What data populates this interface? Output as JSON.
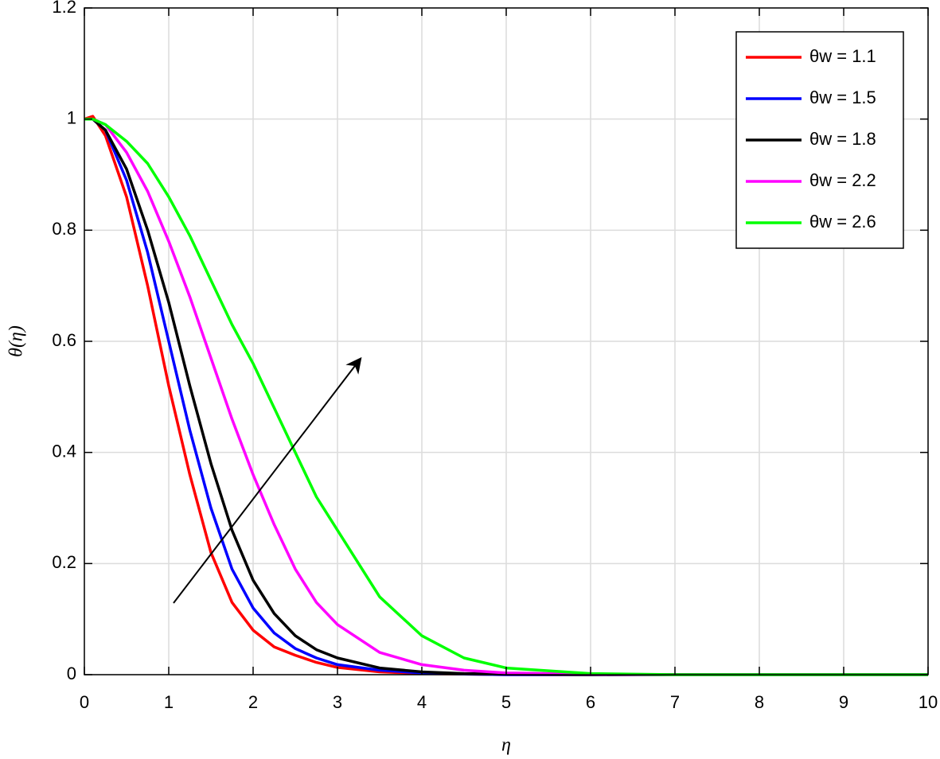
{
  "chart_data": {
    "type": "line",
    "xlabel": "η",
    "ylabel": "θ(η)",
    "x": [
      0,
      0.1,
      0.25,
      0.5,
      0.75,
      1,
      1.25,
      1.5,
      1.75,
      2,
      2.25,
      2.5,
      2.75,
      3,
      3.5,
      4,
      4.5,
      5,
      6,
      7,
      8,
      9,
      10
    ],
    "series": [
      {
        "name": "θw = 1.1",
        "color": "#ff0000",
        "values": [
          1,
          1.005,
          0.97,
          0.86,
          0.7,
          0.52,
          0.36,
          0.22,
          0.13,
          0.08,
          0.05,
          0.035,
          0.022,
          0.013,
          0.005,
          0.002,
          0.001,
          0,
          0,
          0,
          0,
          0,
          0
        ]
      },
      {
        "name": "θw = 1.5",
        "color": "#0000ff",
        "values": [
          1,
          1,
          0.98,
          0.89,
          0.76,
          0.6,
          0.44,
          0.3,
          0.19,
          0.12,
          0.075,
          0.047,
          0.03,
          0.018,
          0.008,
          0.003,
          0.001,
          0,
          0,
          0,
          0,
          0,
          0
        ]
      },
      {
        "name": "θw = 1.8",
        "color": "#000000",
        "values": [
          1,
          1,
          0.98,
          0.91,
          0.8,
          0.67,
          0.52,
          0.38,
          0.26,
          0.17,
          0.11,
          0.07,
          0.045,
          0.03,
          0.012,
          0.005,
          0.002,
          0.001,
          0,
          0,
          0,
          0,
          0
        ]
      },
      {
        "name": "θw = 2.2",
        "color": "#ff00ff",
        "values": [
          1,
          1,
          0.99,
          0.94,
          0.87,
          0.78,
          0.68,
          0.57,
          0.46,
          0.36,
          0.27,
          0.19,
          0.13,
          0.09,
          0.04,
          0.018,
          0.008,
          0.003,
          0.001,
          0,
          0,
          0,
          0
        ]
      },
      {
        "name": "θw = 2.6",
        "color": "#00ff00",
        "values": [
          1,
          1,
          0.99,
          0.96,
          0.92,
          0.86,
          0.79,
          0.71,
          0.63,
          0.56,
          0.48,
          0.4,
          0.32,
          0.26,
          0.14,
          0.07,
          0.03,
          0.012,
          0.002,
          0,
          0,
          0,
          0
        ]
      }
    ],
    "xlim": [
      0,
      10
    ],
    "xticks": [
      0,
      1,
      2,
      3,
      4,
      5,
      6,
      7,
      8,
      9,
      10
    ],
    "ylim": [
      0,
      1.2
    ],
    "yticks": [
      0,
      0.2,
      0.4,
      0.6,
      0.8,
      1,
      1.2
    ],
    "grid": true,
    "legend": "upper right"
  }
}
